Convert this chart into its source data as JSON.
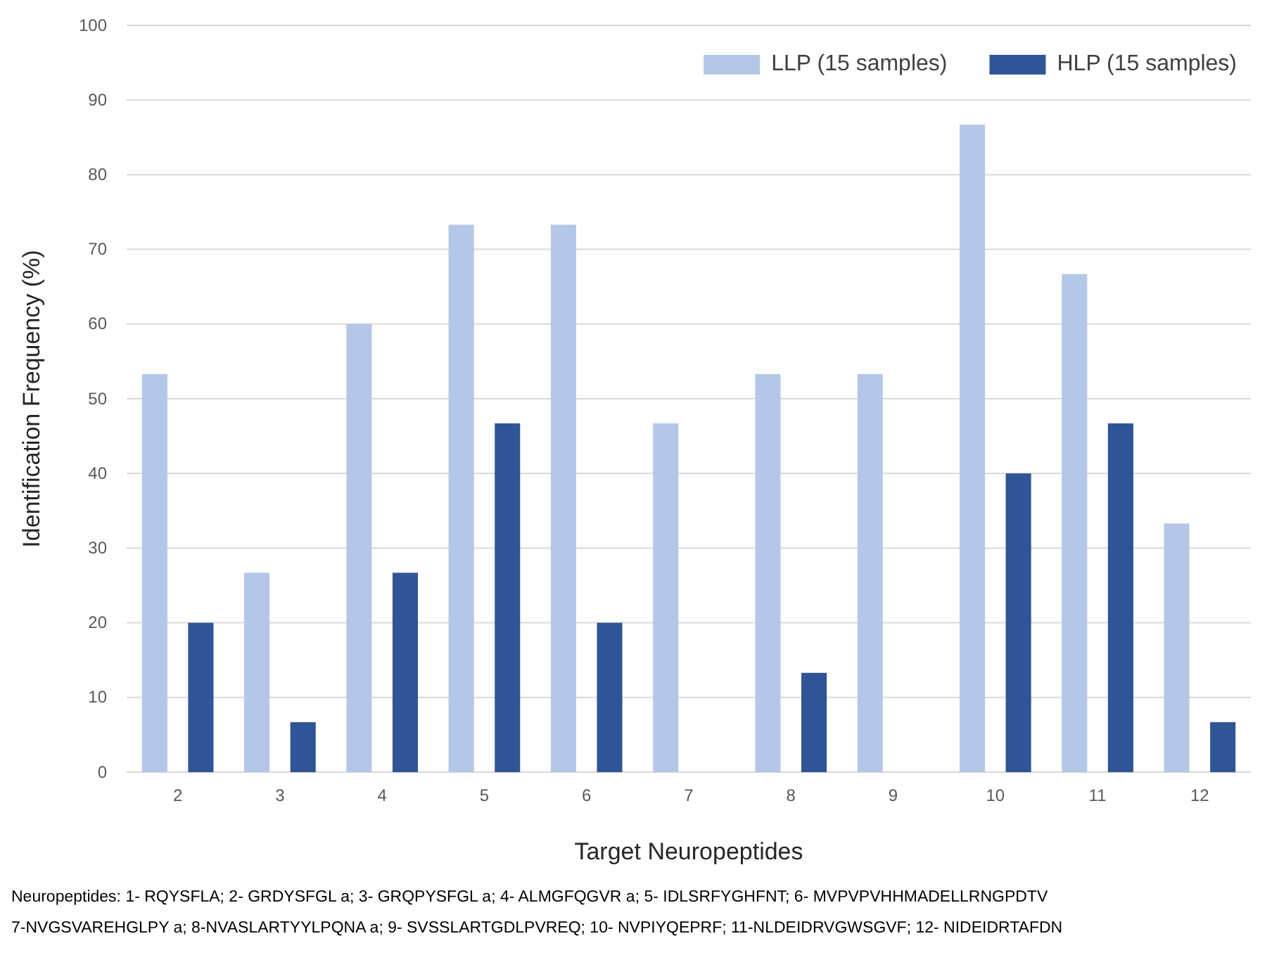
{
  "chart_data": {
    "type": "bar",
    "xlabel": "Target Neuropeptides",
    "ylabel": "Identification  Frequency (%)",
    "categories": [
      "2",
      "3",
      "4",
      "5",
      "6",
      "7",
      "8",
      "9",
      "10",
      "11",
      "12"
    ],
    "series": [
      {
        "name": "LLP (15 samples)",
        "color": "#b4c7e7",
        "values": [
          53.3,
          26.7,
          60,
          73.3,
          73.3,
          46.7,
          53.3,
          53.3,
          86.7,
          66.7,
          33.3
        ]
      },
      {
        "name": "HLP (15 samples)",
        "color": "#2f5597",
        "values": [
          20,
          6.7,
          26.7,
          46.7,
          20,
          0,
          13.3,
          0,
          40,
          46.7,
          6.7
        ]
      }
    ],
    "ylim": [
      0,
      100
    ],
    "yticks": [
      0,
      10,
      20,
      30,
      40,
      50,
      60,
      70,
      80,
      90,
      100
    ],
    "grid": "y",
    "legend": "top right",
    "annotations": [
      "Neuropeptides: 1- RQYSFLA; 2- GRDYSFGL a; 3- GRQPYSFGL a; 4- ALMGFQGVR a; 5- IDLSRFYGHFNT; 6- MVPVPVHHMADELLRNGPDTV",
      "7-NVGSVAREHGLPY a; 8-NVASLARTYYLPQNA a; 9- SVSSLARTGDLPVREQ; 10- NVPIYQEPRF; 11-NLDEIDRVGWSGVF; 12- NIDEIDRTAFDN"
    ]
  }
}
